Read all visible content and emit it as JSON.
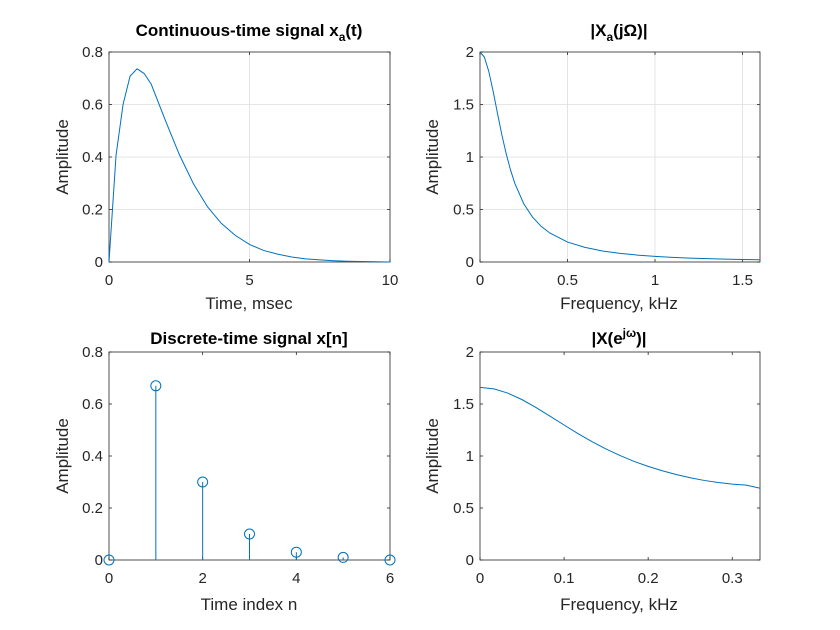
{
  "figure": {
    "background": "#ffffff",
    "line_color": "#0072bd"
  },
  "chart_data": [
    {
      "type": "line",
      "title": {
        "main": "Continuous-time signal x",
        "subscript": "a",
        "suffix": "(t)"
      },
      "xlabel": "Time, msec",
      "ylabel": "Amplitude",
      "xlim": [
        0,
        10
      ],
      "ylim": [
        0,
        0.8
      ],
      "xticks": [
        0,
        5,
        10
      ],
      "yticks": [
        0,
        0.2,
        0.4,
        0.6,
        0.8
      ],
      "xtick_labels": [
        "0",
        "5",
        "10"
      ],
      "ytick_labels": [
        "0",
        "0.2",
        "0.4",
        "0.6",
        "0.8"
      ],
      "grid": true,
      "x": [
        0,
        0.25,
        0.5,
        0.75,
        1,
        1.25,
        1.5,
        2,
        2.5,
        3,
        3.5,
        4,
        4.5,
        5,
        5.5,
        6,
        6.5,
        7,
        7.5,
        8,
        8.5,
        9,
        9.5,
        10
      ],
      "y": [
        0,
        0.406,
        0.6,
        0.708,
        0.736,
        0.718,
        0.678,
        0.541,
        0.41,
        0.299,
        0.211,
        0.147,
        0.101,
        0.067,
        0.044,
        0.03,
        0.019,
        0.012,
        0.008,
        0.005,
        0.003,
        0.002,
        0.001,
        0
      ]
    },
    {
      "type": "line",
      "title": {
        "main": "|X",
        "subscript": "a",
        "suffix": "(jΩ)|"
      },
      "xlabel": "Frequency, kHz",
      "ylabel": "Amplitude",
      "xlim": [
        0,
        1.6
      ],
      "ylim": [
        0,
        2
      ],
      "xticks": [
        0,
        0.5,
        1,
        1.5
      ],
      "yticks": [
        0,
        0.5,
        1,
        1.5,
        2
      ],
      "xtick_labels": [
        "0",
        "0.5",
        "1",
        "1.5"
      ],
      "ytick_labels": [
        "0",
        "0.5",
        "1",
        "1.5",
        "2"
      ],
      "grid": true,
      "x": [
        0,
        0.025,
        0.05,
        0.075,
        0.1,
        0.125,
        0.15,
        0.175,
        0.2,
        0.25,
        0.3,
        0.35,
        0.4,
        0.5,
        0.6,
        0.7,
        0.8,
        0.9,
        1,
        1.1,
        1.2,
        1.3,
        1.4,
        1.5,
        1.6
      ],
      "y": [
        2,
        1.951,
        1.816,
        1.626,
        1.415,
        1.21,
        1.028,
        0.873,
        0.745,
        0.555,
        0.428,
        0.339,
        0.275,
        0.19,
        0.139,
        0.105,
        0.082,
        0.066,
        0.054,
        0.044,
        0.037,
        0.032,
        0.027,
        0.024,
        0.021
      ]
    },
    {
      "type": "stem",
      "title": {
        "main": "Discrete-time signal x[n]",
        "subscript": "",
        "suffix": ""
      },
      "xlabel": "Time index n",
      "ylabel": "Amplitude",
      "xlim": [
        0,
        6
      ],
      "ylim": [
        0,
        0.8
      ],
      "xticks": [
        0,
        2,
        4,
        6
      ],
      "yticks": [
        0,
        0.2,
        0.4,
        0.6,
        0.8
      ],
      "xtick_labels": [
        "0",
        "2",
        "4",
        "6"
      ],
      "ytick_labels": [
        "0",
        "0.2",
        "0.4",
        "0.6",
        "0.8"
      ],
      "grid": false,
      "x": [
        0,
        1,
        2,
        3,
        4,
        5,
        6
      ],
      "y": [
        0,
        0.67,
        0.3,
        0.1,
        0.03,
        0.01,
        0
      ]
    },
    {
      "type": "line",
      "title": {
        "main": "|X(e",
        "superscript": "jω",
        "suffix": ")|"
      },
      "xlabel": "Frequency, kHz",
      "ylabel": "Amplitude",
      "xlim": [
        0,
        0.333
      ],
      "ylim": [
        0,
        2
      ],
      "xticks": [
        0,
        0.1,
        0.2,
        0.3
      ],
      "yticks": [
        0,
        0.5,
        1,
        1.5,
        2
      ],
      "xtick_labels": [
        "0",
        "0.1",
        "0.2",
        "0.3"
      ],
      "ytick_labels": [
        "0",
        "0.5",
        "1",
        "1.5",
        "2"
      ],
      "grid": false,
      "x": [
        0,
        0.0167,
        0.0333,
        0.05,
        0.0667,
        0.0833,
        0.1,
        0.1167,
        0.1333,
        0.15,
        0.1667,
        0.1833,
        0.2,
        0.2167,
        0.2333,
        0.25,
        0.2667,
        0.2833,
        0.3,
        0.3167,
        0.3333
      ],
      "y": [
        1.66,
        1.645,
        1.604,
        1.542,
        1.466,
        1.383,
        1.298,
        1.215,
        1.138,
        1.067,
        1.004,
        0.948,
        0.9,
        0.858,
        0.822,
        0.791,
        0.765,
        0.745,
        0.73,
        0.72,
        0.69
      ]
    }
  ]
}
